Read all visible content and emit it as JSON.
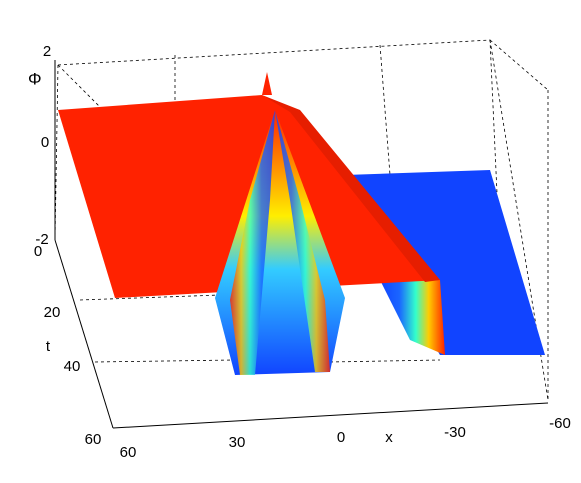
{
  "chart_data": {
    "type": "surface",
    "zlabel": "Φ",
    "ylabel": "t",
    "xlabel": "x",
    "zticks": [
      2,
      0,
      -2
    ],
    "yticks": [
      0,
      20,
      40,
      60
    ],
    "xticks": [
      60,
      30,
      0,
      -30,
      -60
    ],
    "colormap": "jet"
  }
}
